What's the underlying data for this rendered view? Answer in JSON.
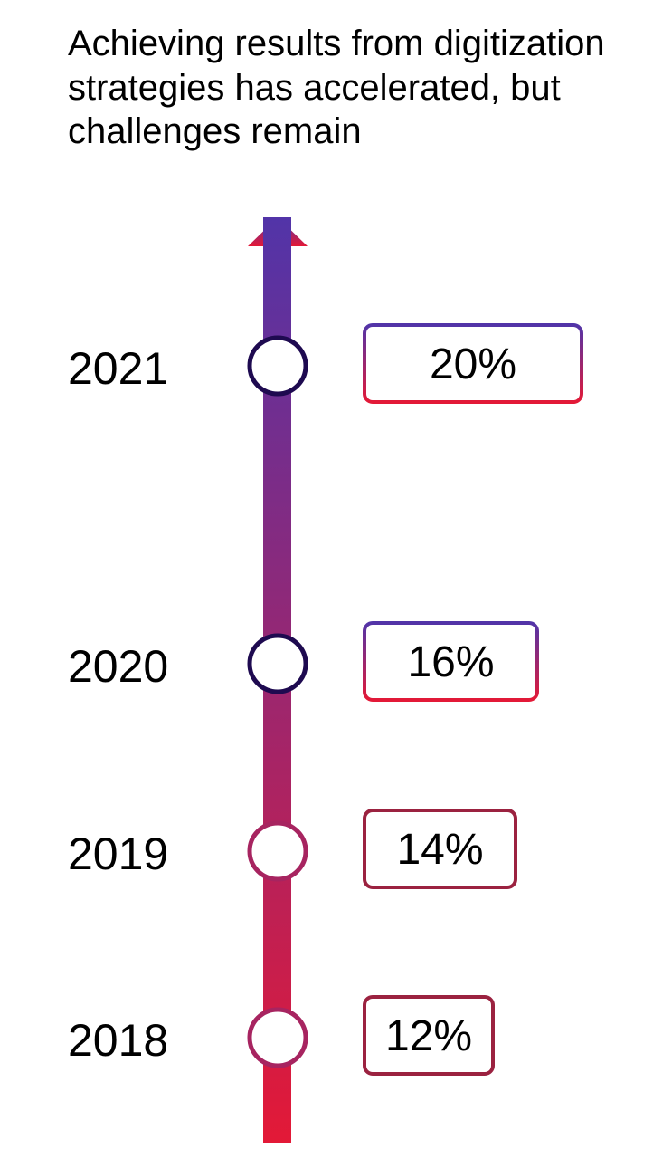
{
  "title": "Achieving results from digitization strategies has accelerated, but challenges remain",
  "chart_data": {
    "type": "timeline",
    "title": "Achieving results from digitization strategies has accelerated, but challenges remain",
    "categories": [
      "2021",
      "2020",
      "2019",
      "2018"
    ],
    "values": [
      20,
      16,
      14,
      12
    ],
    "labels": [
      "20%",
      "16%",
      "14%",
      "12%"
    ],
    "colors": {
      "arrow_top": "#5234a8",
      "arrow_bottom": "#e31937",
      "circle_dark": "#1e0a50",
      "circle_magenta": "#a72460",
      "box_dark": "#9b2240"
    }
  }
}
